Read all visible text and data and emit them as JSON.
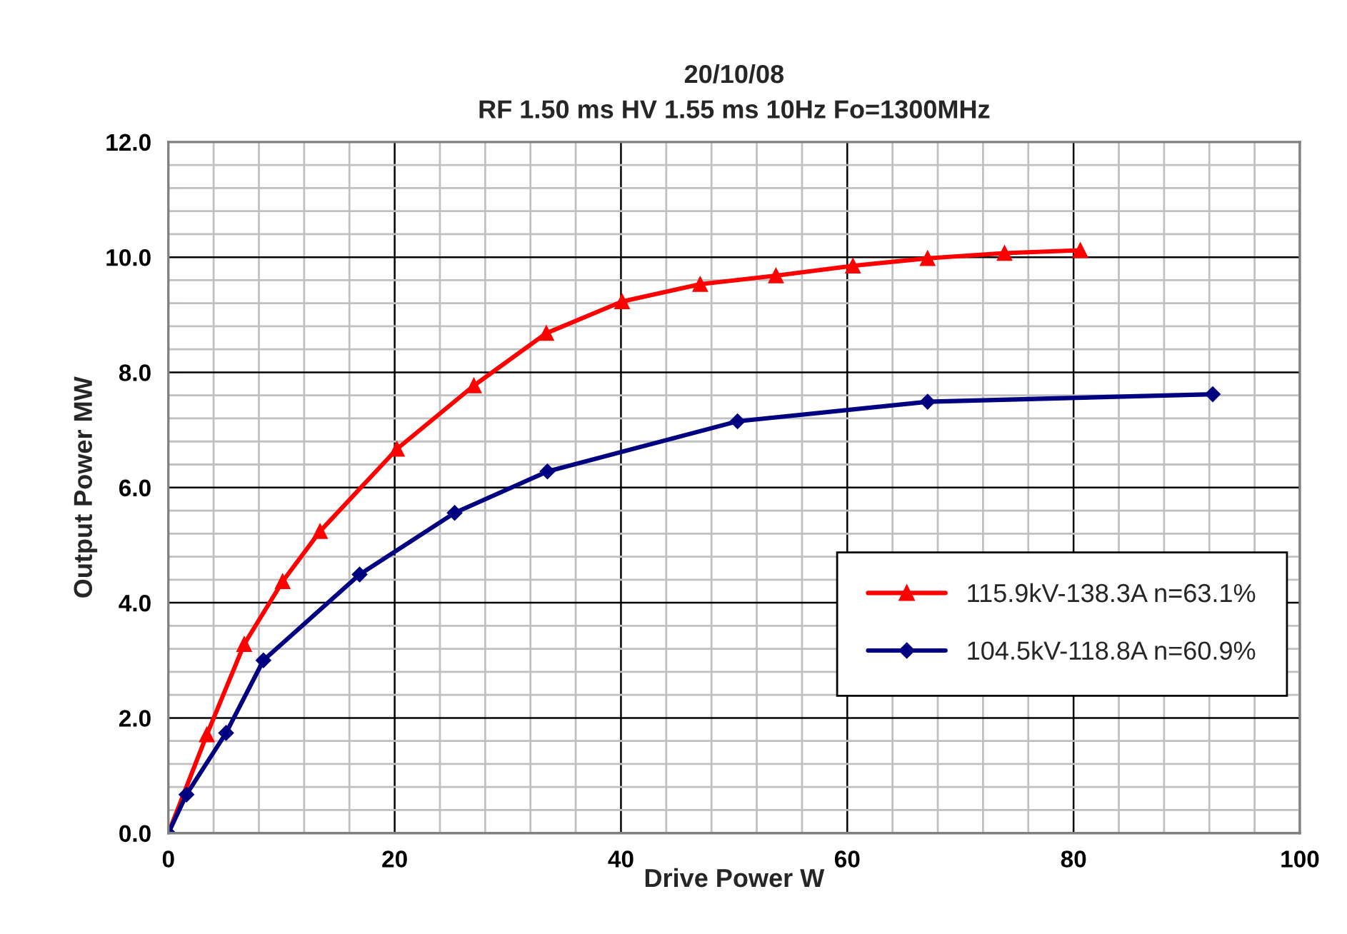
{
  "chart_data": {
    "type": "line",
    "title": "20/10/08\nRF 1.50 ms HV 1.55 ms 10Hz Fo=1300MHz",
    "xlabel": "Drive Power W",
    "ylabel": "Output Power MW",
    "xlim": [
      0,
      100
    ],
    "xticks": [
      0,
      20,
      40,
      60,
      80,
      100
    ],
    "ylim": [
      0,
      12
    ],
    "yticks": [
      {
        "value": 0,
        "label": "0.0"
      },
      {
        "value": 2,
        "label": "2.0"
      },
      {
        "value": 4,
        "label": "4.0"
      },
      {
        "value": 6,
        "label": "6.0"
      },
      {
        "value": 8,
        "label": "8.0"
      },
      {
        "value": 10,
        "label": "10.0"
      },
      {
        "value": 12,
        "label": "12.0"
      }
    ],
    "grid": true,
    "legend": "bottom right",
    "line_style": "solid",
    "series": [
      {
        "name": "115.9kV-138.3A n=63.1%",
        "color": "#ff0000",
        "marker": "triangle",
        "x": [
          0,
          3.4,
          6.7,
          10.1,
          13.4,
          20.2,
          27.0,
          33.4,
          40.1,
          47.0,
          53.7,
          60.5,
          67.1,
          73.9,
          80.6
        ],
        "values": [
          0,
          1.71,
          3.28,
          4.37,
          5.24,
          6.67,
          7.77,
          8.68,
          9.23,
          9.53,
          9.68,
          9.85,
          9.98,
          10.07,
          10.12
        ]
      },
      {
        "name": "104.5kV-118.8A n=60.9%",
        "color": "#000080",
        "marker": "diamond",
        "x": [
          0,
          1.6,
          5.1,
          8.4,
          16.9,
          25.3,
          33.5,
          50.3,
          67.1,
          92.3
        ],
        "values": [
          0,
          0.67,
          1.74,
          3.0,
          4.49,
          5.56,
          6.28,
          7.15,
          7.49,
          7.62
        ]
      }
    ]
  }
}
